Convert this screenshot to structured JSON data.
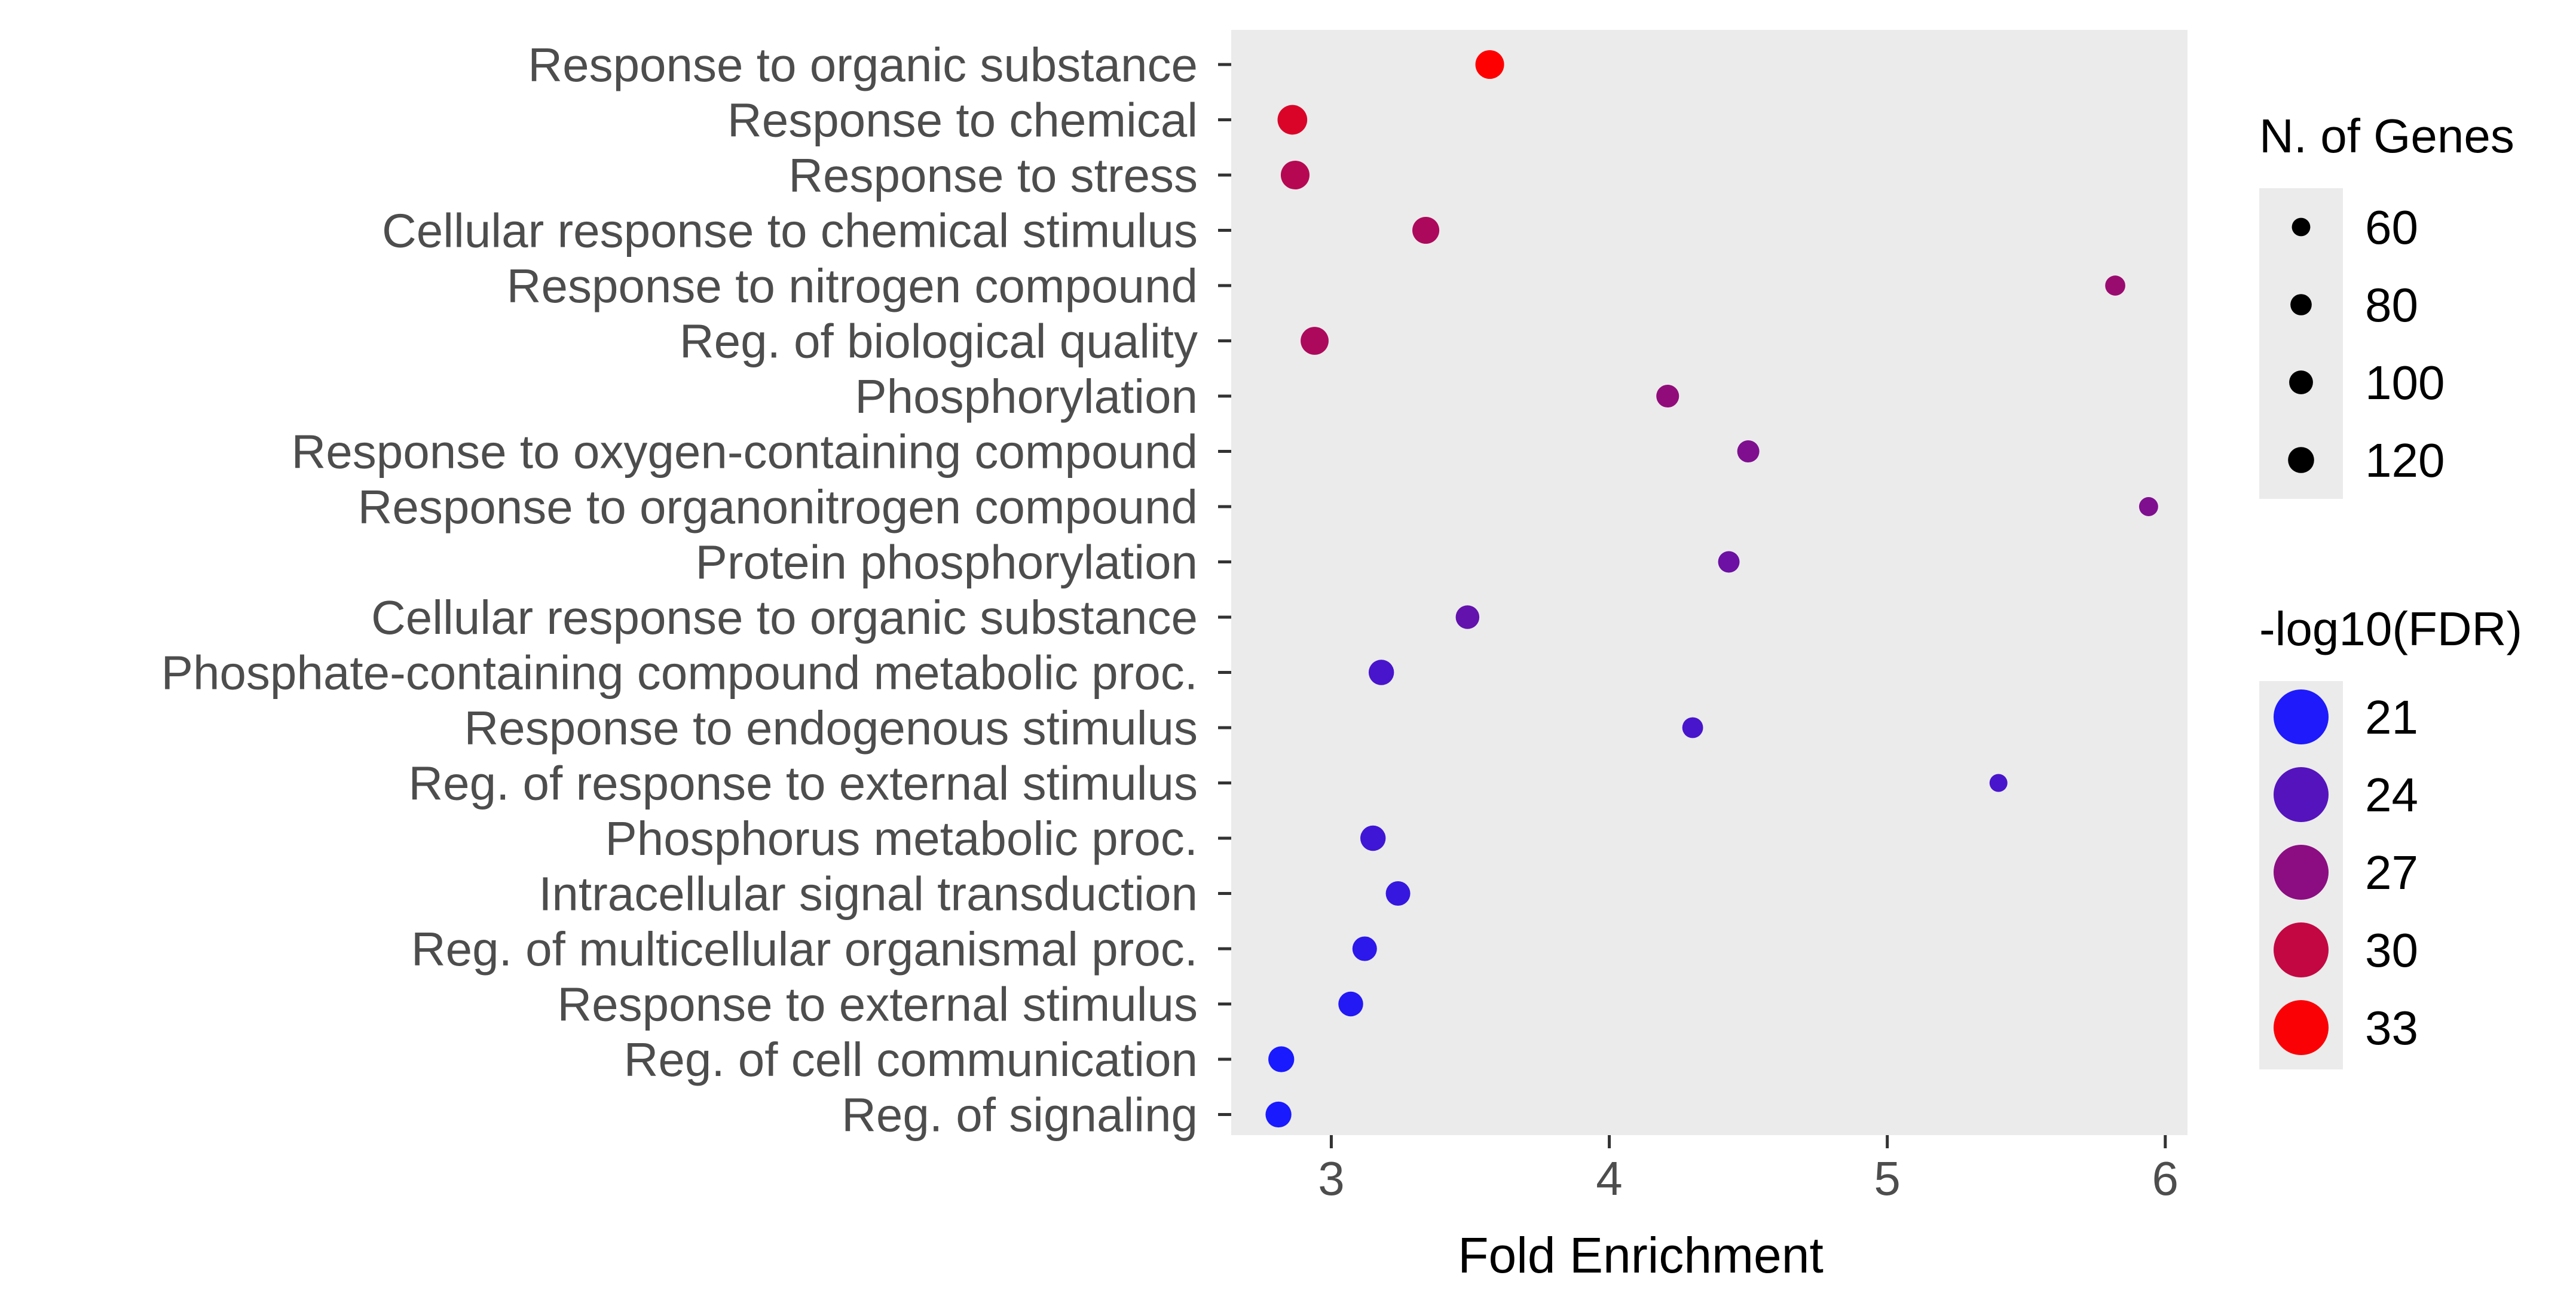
{
  "chart_data": {
    "type": "scatter",
    "xlabel": "Fold Enrichment",
    "xlim": [
      2.64,
      6.08
    ],
    "xticks": [
      3,
      4,
      5,
      6
    ],
    "categories": [
      "Response to organic substance",
      "Response to chemical",
      "Response to stress",
      "Cellular response to chemical stimulus",
      "Response to nitrogen compound",
      "Reg. of biological quality",
      "Phosphorylation",
      "Response to oxygen-containing compound",
      "Response to organonitrogen compound",
      "Protein phosphorylation",
      "Cellular response to organic substance",
      "Phosphate-containing compound metabolic proc.",
      "Response to endogenous stimulus",
      "Reg. of response to external stimulus",
      "Phosphorus metabolic proc.",
      "Intracellular signal transduction",
      "Reg. of multicellular organismal proc.",
      "Response to external stimulus",
      "Reg. of cell communication",
      "Reg. of signaling"
    ],
    "points": [
      {
        "category": "Response to organic substance",
        "fold_enrichment": 3.57,
        "n_genes": 118,
        "neg_log10_fdr": 33.5
      },
      {
        "category": "Response to chemical",
        "fold_enrichment": 2.86,
        "n_genes": 126,
        "neg_log10_fdr": 31.5
      },
      {
        "category": "Response to stress",
        "fold_enrichment": 2.87,
        "n_genes": 118,
        "neg_log10_fdr": 29.5
      },
      {
        "category": "Cellular response to chemical stimulus",
        "fold_enrichment": 3.34,
        "n_genes": 104,
        "neg_log10_fdr": 29.0
      },
      {
        "category": "Response to nitrogen compound",
        "fold_enrichment": 5.82,
        "n_genes": 58,
        "neg_log10_fdr": 28.0
      },
      {
        "category": "Reg. of biological quality",
        "fold_enrichment": 2.94,
        "n_genes": 112,
        "neg_log10_fdr": 29.0
      },
      {
        "category": "Phosphorylation",
        "fold_enrichment": 4.21,
        "n_genes": 74,
        "neg_log10_fdr": 27.5
      },
      {
        "category": "Response to oxygen-containing compound",
        "fold_enrichment": 4.5,
        "n_genes": 70,
        "neg_log10_fdr": 26.5
      },
      {
        "category": "Response to organonitrogen compound",
        "fold_enrichment": 5.94,
        "n_genes": 52,
        "neg_log10_fdr": 26.5
      },
      {
        "category": "Protein phosphorylation",
        "fold_enrichment": 4.43,
        "n_genes": 66,
        "neg_log10_fdr": 25.5
      },
      {
        "category": "Cellular response to organic substance",
        "fold_enrichment": 3.49,
        "n_genes": 80,
        "neg_log10_fdr": 25.0
      },
      {
        "category": "Phosphate-containing compound metabolic proc.",
        "fold_enrichment": 3.18,
        "n_genes": 92,
        "neg_log10_fdr": 23.5
      },
      {
        "category": "Response to endogenous stimulus",
        "fold_enrichment": 4.3,
        "n_genes": 62,
        "neg_log10_fdr": 23.5
      },
      {
        "category": "Reg. of response to external stimulus",
        "fold_enrichment": 5.4,
        "n_genes": 46,
        "neg_log10_fdr": 23.5
      },
      {
        "category": "Phosphorus metabolic proc.",
        "fold_enrichment": 3.15,
        "n_genes": 92,
        "neg_log10_fdr": 23.0
      },
      {
        "category": "Intracellular signal transduction",
        "fold_enrichment": 3.24,
        "n_genes": 86,
        "neg_log10_fdr": 22.5
      },
      {
        "category": "Reg. of multicellular organismal proc.",
        "fold_enrichment": 3.12,
        "n_genes": 86,
        "neg_log10_fdr": 22.0
      },
      {
        "category": "Response to external stimulus",
        "fold_enrichment": 3.07,
        "n_genes": 88,
        "neg_log10_fdr": 21.5
      },
      {
        "category": "Reg. of cell communication",
        "fold_enrichment": 2.82,
        "n_genes": 96,
        "neg_log10_fdr": 20.5
      },
      {
        "category": "Reg. of signaling",
        "fold_enrichment": 2.81,
        "n_genes": 96,
        "neg_log10_fdr": 20.5
      }
    ],
    "size_legend": {
      "title": "N. of Genes",
      "values": [
        60,
        80,
        100,
        120
      ],
      "labels": [
        "60",
        "80",
        "100",
        "120"
      ]
    },
    "color_legend": {
      "title": "-log10(FDR)",
      "values": [
        21,
        24,
        27,
        30,
        33
      ],
      "labels": [
        "21",
        "24",
        "27",
        "30",
        "33"
      ],
      "low_color": "#1a1aff",
      "high_color": "#ff0000"
    },
    "panel_background": "#ebebeb",
    "grid": false
  }
}
